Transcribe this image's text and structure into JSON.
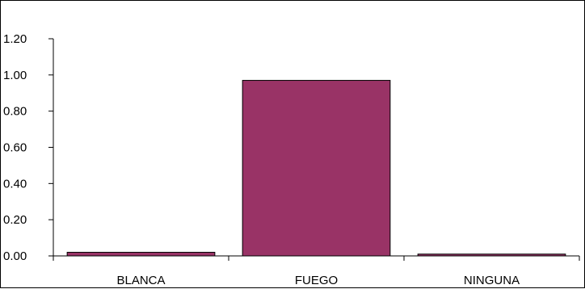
{
  "chart_data": {
    "type": "bar",
    "categories": [
      "BLANCA",
      "FUEGO",
      "NINGUNA"
    ],
    "values": [
      0.02,
      0.97,
      0.01
    ],
    "y_tick_labels": [
      "0.00",
      "0.20",
      "0.40",
      "0.60",
      "0.80",
      "1.00",
      "1.20"
    ],
    "ylim": [
      0,
      1.2
    ],
    "grid": false,
    "legend": "none",
    "bar_color": "#993366",
    "bar_border_color": "#000000",
    "axis_color": "#000000"
  }
}
